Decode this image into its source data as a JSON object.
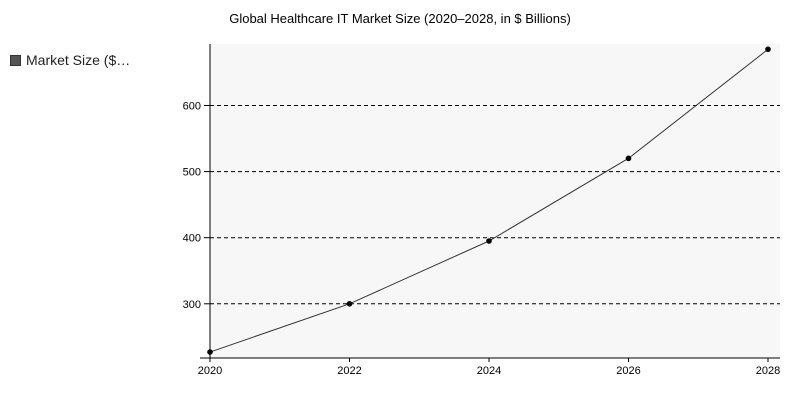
{
  "chart_data": {
    "type": "line",
    "title": "Global Healthcare IT Market Size (2020–2028, in $ Billions)",
    "xlabel": "",
    "ylabel": "",
    "x": [
      2020,
      2022,
      2024,
      2026,
      2028
    ],
    "series": [
      {
        "name": "Market Size ($…",
        "values": [
          227,
          300,
          395,
          520,
          685
        ],
        "color": "#333333"
      }
    ],
    "x_ticks": [
      "2020",
      "2022",
      "2024",
      "2026",
      "2028"
    ],
    "y_ticks": [
      300,
      400,
      500,
      600
    ],
    "xlim": [
      2020,
      2028
    ],
    "ylim": [
      218,
      693
    ],
    "grid": "horizontal-dashed",
    "legend_position": "top-left"
  }
}
